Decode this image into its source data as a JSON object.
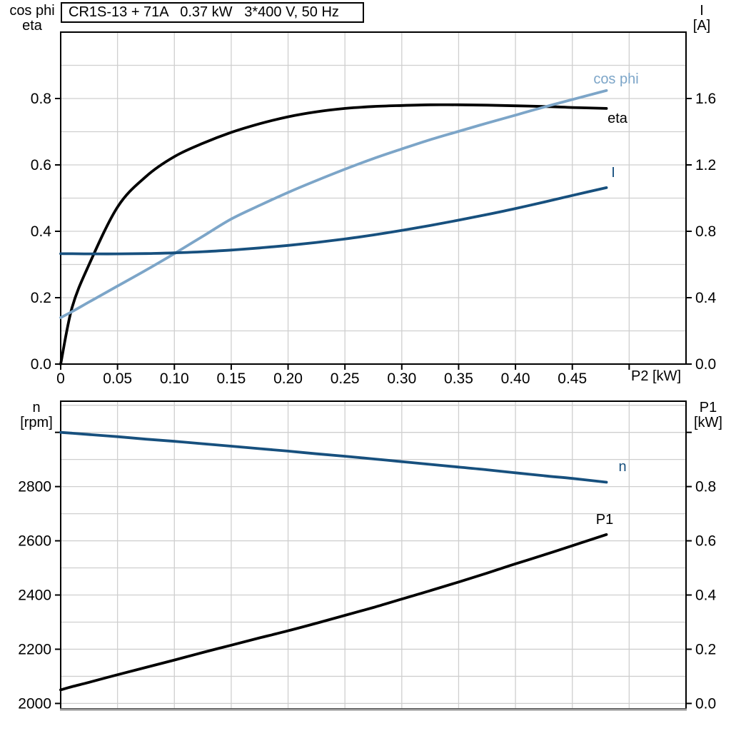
{
  "title_box": "CR1S-13 + 71A   0.37 kW   3*400 V, 50 Hz",
  "colors": {
    "black": "#000000",
    "dark_blue": "#17507E",
    "light_blue": "#7CA5C8",
    "grid": "#CFCFCF",
    "frame": "#000000",
    "bottom_edge": "#9B9B9B",
    "background": "#FFFFFF"
  },
  "labels": {
    "top_left_line1": "cos phi",
    "top_left_line2": "eta",
    "top_right_line1": "I",
    "top_right_line2": "[A]",
    "bottom_left_line1": "n",
    "bottom_left_line2": "[rpm]",
    "bottom_right_line1": "P1",
    "bottom_right_line2": "[kW]",
    "x_axis_label": "P2 [kW]",
    "curve_cos_phi": "cos phi",
    "curve_eta": "eta",
    "curve_I": "I",
    "curve_n": "n",
    "curve_P1": "P1"
  },
  "chart_data": [
    {
      "id": "top",
      "type": "line",
      "title": "CR1S-13 + 71A   0.37 kW   3*400 V, 50 Hz",
      "xlabel": "P2 [kW]",
      "ylabel_left": "cos phi / eta",
      "ylabel_right": "I [A]",
      "grid": true,
      "x_axis": {
        "range": [
          0,
          0.55
        ],
        "ticks": [
          0,
          0.05,
          0.1,
          0.15,
          0.2,
          0.25,
          0.3,
          0.35,
          0.4,
          0.45,
          0.5
        ],
        "tick_labels": [
          "0",
          "0.05",
          "0.10",
          "0.15",
          "0.20",
          "0.25",
          "0.30",
          "0.35",
          "0.40",
          "0.45",
          ""
        ],
        "grid_values": [
          0.05,
          0.1,
          0.15,
          0.2,
          0.25,
          0.3,
          0.35,
          0.4,
          0.45,
          0.5
        ],
        "show_ticks": true
      },
      "y_left": {
        "range": [
          0,
          1.0
        ],
        "ticks": [
          0,
          0.2,
          0.4,
          0.6,
          0.8
        ],
        "tick_labels": [
          "0.0",
          "0.2",
          "0.4",
          "0.6",
          "0.8"
        ],
        "grid_values": [
          0.1,
          0.2,
          0.3,
          0.4,
          0.5,
          0.6,
          0.7,
          0.8,
          0.9
        ]
      },
      "y_right": {
        "range": [
          0,
          2.0
        ],
        "ticks": [
          0,
          0.4,
          0.8,
          1.2,
          1.6
        ],
        "tick_labels": [
          "0.0",
          "0.4",
          "0.8",
          "1.2",
          "1.6"
        ]
      },
      "x": [
        0,
        0.01,
        0.025,
        0.05,
        0.075,
        0.1,
        0.125,
        0.15,
        0.175,
        0.2,
        0.225,
        0.25,
        0.275,
        0.3,
        0.325,
        0.35,
        0.375,
        0.4,
        0.425,
        0.45,
        0.48
      ],
      "series": [
        {
          "name": "eta",
          "axis": "left",
          "color_key": "black",
          "values": [
            0,
            0.17,
            0.3,
            0.473,
            0.565,
            0.625,
            0.665,
            0.698,
            0.724,
            0.745,
            0.76,
            0.77,
            0.776,
            0.779,
            0.781,
            0.781,
            0.78,
            0.778,
            0.776,
            0.773,
            0.77
          ]
        },
        {
          "name": "cos phi",
          "axis": "left",
          "color_key": "light_blue",
          "values": [
            0.14,
            0.158,
            0.187,
            0.235,
            0.283,
            0.333,
            0.385,
            0.437,
            0.478,
            0.517,
            0.553,
            0.587,
            0.619,
            0.648,
            0.676,
            0.701,
            0.726,
            0.75,
            0.774,
            0.797,
            0.824
          ]
        },
        {
          "name": "I",
          "axis": "right",
          "color_key": "dark_blue",
          "values": [
            0.665,
            0.665,
            0.664,
            0.664,
            0.666,
            0.67,
            0.677,
            0.687,
            0.7,
            0.715,
            0.733,
            0.754,
            0.778,
            0.805,
            0.835,
            0.867,
            0.901,
            0.937,
            0.976,
            1.016,
            1.063
          ]
        }
      ]
    },
    {
      "id": "bottom",
      "type": "line",
      "title": "",
      "xlabel": "P2 [kW]",
      "ylabel_left": "n [rpm]",
      "ylabel_right": "P1 [kW]",
      "grid": true,
      "gray_baseline": true,
      "x_axis": {
        "range": [
          0,
          0.55
        ],
        "ticks": [],
        "tick_labels": [],
        "grid_values": [
          0.05,
          0.1,
          0.15,
          0.2,
          0.25,
          0.3,
          0.35,
          0.4,
          0.45,
          0.5
        ],
        "show_ticks": false
      },
      "y_left": {
        "range": [
          1980,
          3115
        ],
        "ticks": [
          2000,
          2200,
          2400,
          2600,
          2800,
          3000
        ],
        "tick_labels": [
          "2000",
          "2200",
          "2400",
          "2600",
          "2800",
          ""
        ],
        "grid_values": [
          2000,
          2100,
          2200,
          2300,
          2400,
          2500,
          2600,
          2700,
          2800,
          2900,
          3000,
          3100
        ]
      },
      "y_right": {
        "range": [
          -0.02,
          1.115
        ],
        "ticks": [
          0,
          0.2,
          0.4,
          0.6,
          0.8,
          1.0
        ],
        "tick_labels": [
          "0.0",
          "0.2",
          "0.4",
          "0.6",
          "0.8",
          ""
        ]
      },
      "x": [
        0,
        0.01,
        0.025,
        0.05,
        0.075,
        0.1,
        0.125,
        0.15,
        0.175,
        0.2,
        0.225,
        0.25,
        0.275,
        0.3,
        0.325,
        0.35,
        0.375,
        0.4,
        0.425,
        0.45,
        0.48
      ],
      "series": [
        {
          "name": "n",
          "axis": "left",
          "color_key": "dark_blue",
          "values": [
            3000,
            2997,
            2992,
            2984,
            2975,
            2967,
            2958,
            2949,
            2940,
            2931,
            2921,
            2912,
            2902,
            2892,
            2882,
            2872,
            2862,
            2851,
            2840,
            2830,
            2816
          ]
        },
        {
          "name": "P1",
          "axis": "right",
          "color_key": "black",
          "values": [
            0.05,
            0.062,
            0.078,
            0.106,
            0.133,
            0.16,
            0.188,
            0.215,
            0.242,
            0.268,
            0.296,
            0.325,
            0.354,
            0.385,
            0.416,
            0.448,
            0.481,
            0.515,
            0.548,
            0.582,
            0.623
          ]
        }
      ]
    }
  ]
}
